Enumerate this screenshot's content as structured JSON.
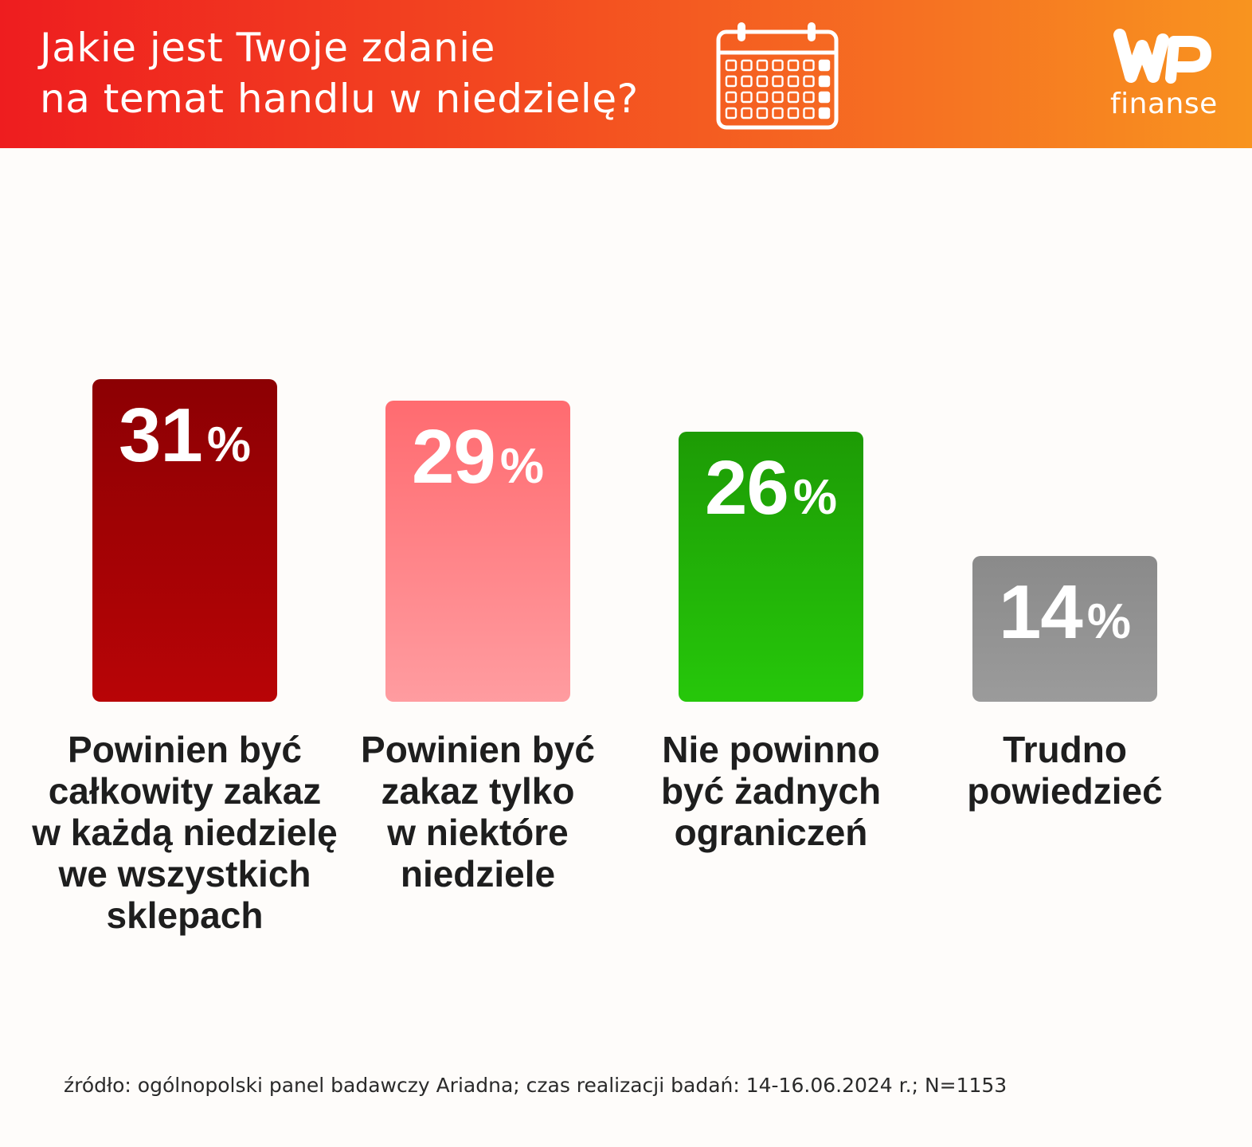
{
  "header": {
    "title_lines": [
      "Jakie jest Twoje zdanie",
      "na temat handlu w niedzielę?"
    ],
    "icon": "calendar-icon",
    "logo": {
      "mark": "WP",
      "text": "finanse"
    }
  },
  "chart_data": {
    "type": "bar",
    "title": "Jakie jest Twoje zdanie na temat handlu w niedzielę?",
    "categories": [
      "Powinien być całkowity zakaz w każdą niedzielę we wszystkich sklepach",
      "Powinien być zakaz tylko w niektóre niedziele",
      "Nie powinno być żadnych ograniczeń",
      "Trudno powiedzieć"
    ],
    "values": [
      31,
      29,
      26,
      14
    ],
    "unit": "%",
    "xlabel": "",
    "ylabel": "",
    "ylim": [
      0,
      100
    ],
    "grid": false,
    "legend": "none",
    "colors": [
      [
        "#8c0003",
        "#b80406"
      ],
      [
        "#ff6b70",
        "#ff9ca0"
      ],
      [
        "#1d9b05",
        "#26c70a"
      ],
      [
        "#8a8a8a",
        "#9b9b9b"
      ]
    ]
  },
  "labels": [
    [
      "Powinien być",
      "całkowity zakaz",
      "w każdą niedzielę",
      "we wszystkich",
      "sklepach"
    ],
    [
      "Powinien być",
      "zakaz tylko",
      "w niektóre",
      "niedziele"
    ],
    [
      "Nie powinno",
      "być żadnych",
      "ograniczeń"
    ],
    [
      "Trudno",
      "powiedzieć"
    ]
  ],
  "footer": {
    "source": "źródło: ogólnopolski panel badawczy Ariadna; czas realizacji badań: 14-16.06.2024 r.; N=1153"
  }
}
